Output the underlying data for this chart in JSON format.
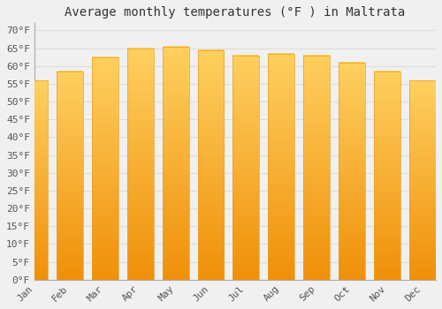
{
  "title": "Average monthly temperatures (°F ) in Maltrata",
  "months": [
    "Jan",
    "Feb",
    "Mar",
    "Apr",
    "May",
    "Jun",
    "Jul",
    "Aug",
    "Sep",
    "Oct",
    "Nov",
    "Dec"
  ],
  "values": [
    56,
    58.5,
    62.5,
    65,
    65.5,
    64.5,
    63,
    63.5,
    63,
    61,
    58.5,
    56
  ],
  "bar_color": "#F5A623",
  "background_color": "#f0f0f0",
  "grid_color": "#dddddd",
  "ylim": [
    0,
    72
  ],
  "yticks": [
    0,
    5,
    10,
    15,
    20,
    25,
    30,
    35,
    40,
    45,
    50,
    55,
    60,
    65,
    70
  ],
  "title_fontsize": 10,
  "tick_fontsize": 8,
  "font_family": "monospace"
}
